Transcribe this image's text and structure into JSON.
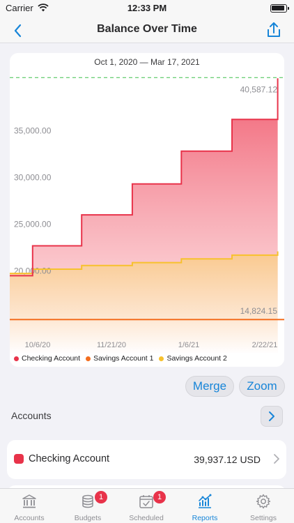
{
  "status_bar": {
    "carrier": "Carrier",
    "time": "12:33 PM"
  },
  "nav": {
    "title": "Balance Over Time",
    "back_icon": "chevron-left-icon",
    "share_icon": "share-icon"
  },
  "chart_data": {
    "type": "area",
    "date_range": "Oct 1, 2020 — Mar 17, 2021",
    "x_tick_labels": [
      "10/6/20",
      "11/21/20",
      "1/6/21",
      "2/22/21"
    ],
    "y_tick_labels": [
      "35,000.00",
      "30,000.00",
      "25,000.00",
      "20,000.00"
    ],
    "y_ticks": [
      35000,
      30000,
      25000,
      20000
    ],
    "ylim": [
      13500,
      41500
    ],
    "x_days": [
      0,
      168
    ],
    "max_label": "40,587.12",
    "min_label": "14,824.15",
    "max_value": 40587.12,
    "min_value": 14824.15,
    "series": [
      {
        "name": "Checking Account",
        "color": "#e8334a",
        "points": [
          [
            0,
            19500
          ],
          [
            14,
            19500
          ],
          [
            14,
            22700
          ],
          [
            44,
            22700
          ],
          [
            44,
            26000
          ],
          [
            75,
            26000
          ],
          [
            75,
            29300
          ],
          [
            105,
            29300
          ],
          [
            105,
            32800
          ],
          [
            136,
            32800
          ],
          [
            136,
            36200
          ],
          [
            164,
            36200
          ],
          [
            164,
            40587
          ]
        ]
      },
      {
        "name": "Savings Account 1",
        "color": "#f36d1e",
        "points": [
          [
            0,
            14824
          ],
          [
            168,
            14824
          ]
        ]
      },
      {
        "name": "Savings Account 2",
        "color": "#f7c12d",
        "points": [
          [
            0,
            19750
          ],
          [
            14,
            19750
          ],
          [
            14,
            20200
          ],
          [
            44,
            20200
          ],
          [
            44,
            20600
          ],
          [
            75,
            20600
          ],
          [
            75,
            20900
          ],
          [
            105,
            20900
          ],
          [
            105,
            21300
          ],
          [
            136,
            21300
          ],
          [
            136,
            21700
          ],
          [
            164,
            21700
          ],
          [
            164,
            22100
          ]
        ]
      }
    ]
  },
  "buttons": {
    "merge": "Merge",
    "zoom": "Zoom"
  },
  "accounts": {
    "section_label": "Accounts",
    "items": [
      {
        "name": "Checking Account",
        "balance": "39,937.12 USD",
        "color": "#e8334a"
      }
    ]
  },
  "tabs": [
    {
      "label": "Accounts",
      "icon": "bank-icon",
      "badge": ""
    },
    {
      "label": "Budgets",
      "icon": "coins-icon",
      "badge": "1"
    },
    {
      "label": "Scheduled",
      "icon": "calendar-check-icon",
      "badge": "1"
    },
    {
      "label": "Reports",
      "icon": "chart-icon",
      "badge": "",
      "active": true
    },
    {
      "label": "Settings",
      "icon": "gear-icon",
      "badge": ""
    }
  ]
}
